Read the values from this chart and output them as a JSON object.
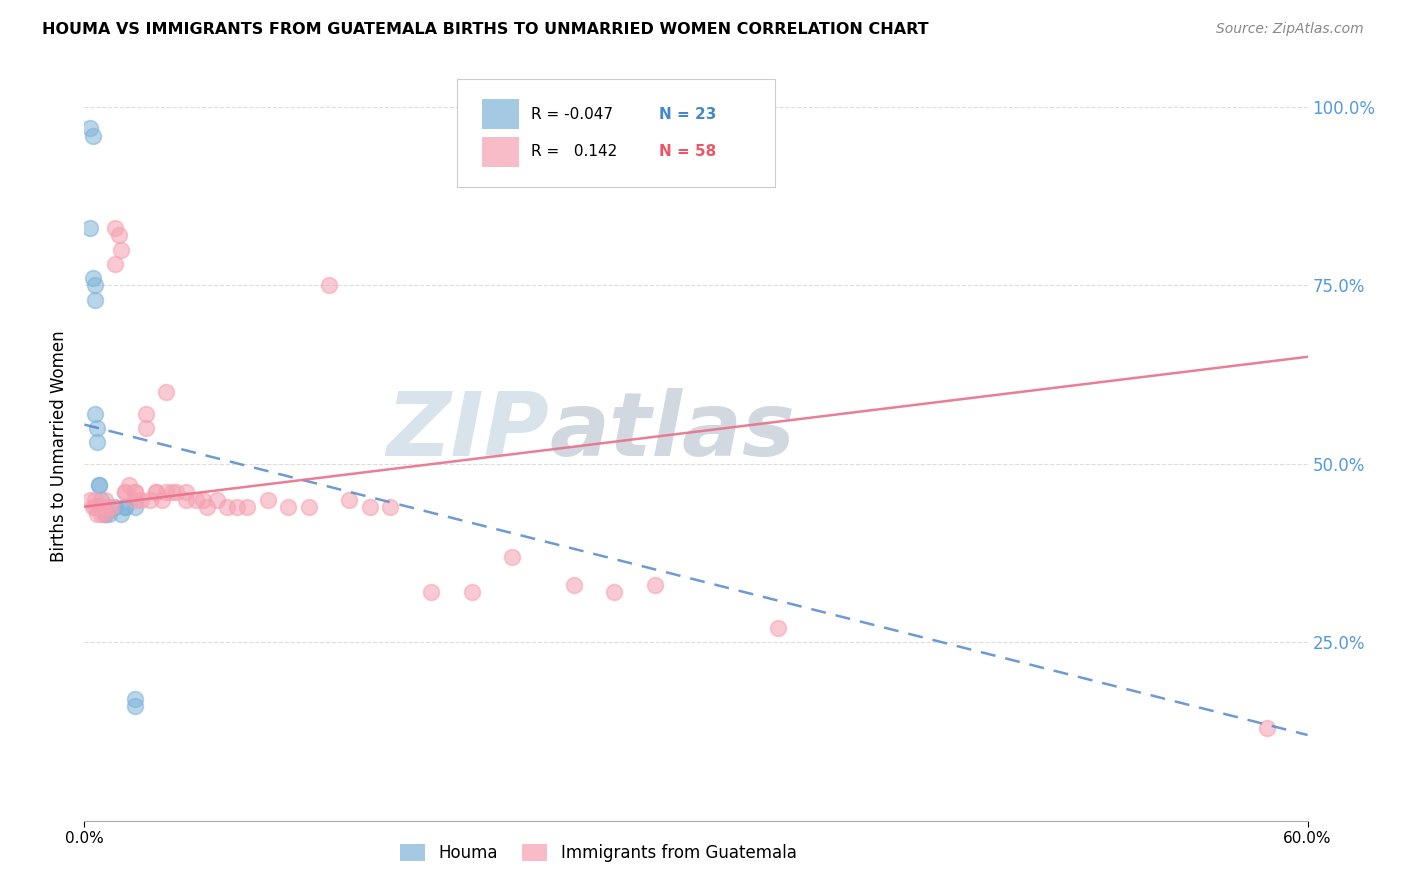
{
  "title": "HOUMA VS IMMIGRANTS FROM GUATEMALA BIRTHS TO UNMARRIED WOMEN CORRELATION CHART",
  "source": "Source: ZipAtlas.com",
  "ylabel": "Births to Unmarried Women",
  "yticks": [
    0.0,
    0.25,
    0.5,
    0.75,
    1.0
  ],
  "ytick_labels": [
    "",
    "25.0%",
    "50.0%",
    "75.0%",
    "100.0%"
  ],
  "xmin": 0.0,
  "xmax": 0.6,
  "ymin": 0.0,
  "ymax": 1.05,
  "blue_color": "#7EB3D8",
  "pink_color": "#F5A0B0",
  "blue_line_color": "#5588CC",
  "pink_line_color": "#E8708A",
  "blue_scatter_edge": "#7EB3D8",
  "pink_scatter_edge": "#F5A0B0",
  "watermark_text": "ZIP",
  "watermark_text2": "atlas",
  "watermark_color1": "#BBCCDD",
  "watermark_color2": "#99BBDD",
  "grid_color": "#DDDDDD",
  "houma_x": [
    0.003,
    0.004,
    0.003,
    0.004,
    0.005,
    0.005,
    0.005,
    0.006,
    0.006,
    0.007,
    0.007,
    0.008,
    0.008,
    0.01,
    0.01,
    0.012,
    0.015,
    0.018,
    0.02,
    0.02,
    0.025,
    0.025,
    0.025
  ],
  "houma_y": [
    0.97,
    0.96,
    0.83,
    0.76,
    0.75,
    0.73,
    0.57,
    0.55,
    0.53,
    0.47,
    0.47,
    0.45,
    0.44,
    0.43,
    0.43,
    0.43,
    0.44,
    0.43,
    0.44,
    0.44,
    0.17,
    0.16,
    0.44
  ],
  "guatemala_x": [
    0.003,
    0.004,
    0.005,
    0.005,
    0.006,
    0.007,
    0.008,
    0.008,
    0.009,
    0.01,
    0.01,
    0.012,
    0.013,
    0.015,
    0.015,
    0.017,
    0.018,
    0.02,
    0.02,
    0.022,
    0.025,
    0.025,
    0.025,
    0.028,
    0.03,
    0.03,
    0.032,
    0.035,
    0.035,
    0.038,
    0.04,
    0.04,
    0.043,
    0.045,
    0.05,
    0.05,
    0.055,
    0.058,
    0.06,
    0.065,
    0.07,
    0.075,
    0.08,
    0.09,
    0.1,
    0.11,
    0.12,
    0.13,
    0.14,
    0.15,
    0.17,
    0.19,
    0.21,
    0.24,
    0.26,
    0.28,
    0.34,
    0.58
  ],
  "guatemala_y": [
    0.45,
    0.44,
    0.45,
    0.44,
    0.43,
    0.44,
    0.43,
    0.44,
    0.44,
    0.45,
    0.43,
    0.44,
    0.44,
    0.83,
    0.78,
    0.82,
    0.8,
    0.46,
    0.46,
    0.47,
    0.46,
    0.45,
    0.46,
    0.45,
    0.55,
    0.57,
    0.45,
    0.46,
    0.46,
    0.45,
    0.6,
    0.46,
    0.46,
    0.46,
    0.46,
    0.45,
    0.45,
    0.45,
    0.44,
    0.45,
    0.44,
    0.44,
    0.44,
    0.45,
    0.44,
    0.44,
    0.75,
    0.45,
    0.44,
    0.44,
    0.32,
    0.32,
    0.37,
    0.33,
    0.32,
    0.33,
    0.27,
    0.13
  ],
  "houma_trend_x0": 0.0,
  "houma_trend_y0": 0.555,
  "houma_trend_x1": 0.6,
  "houma_trend_y1": 0.12,
  "guatemala_trend_x0": 0.0,
  "guatemala_trend_y0": 0.44,
  "guatemala_trend_x1": 0.6,
  "guatemala_trend_y1": 0.65
}
